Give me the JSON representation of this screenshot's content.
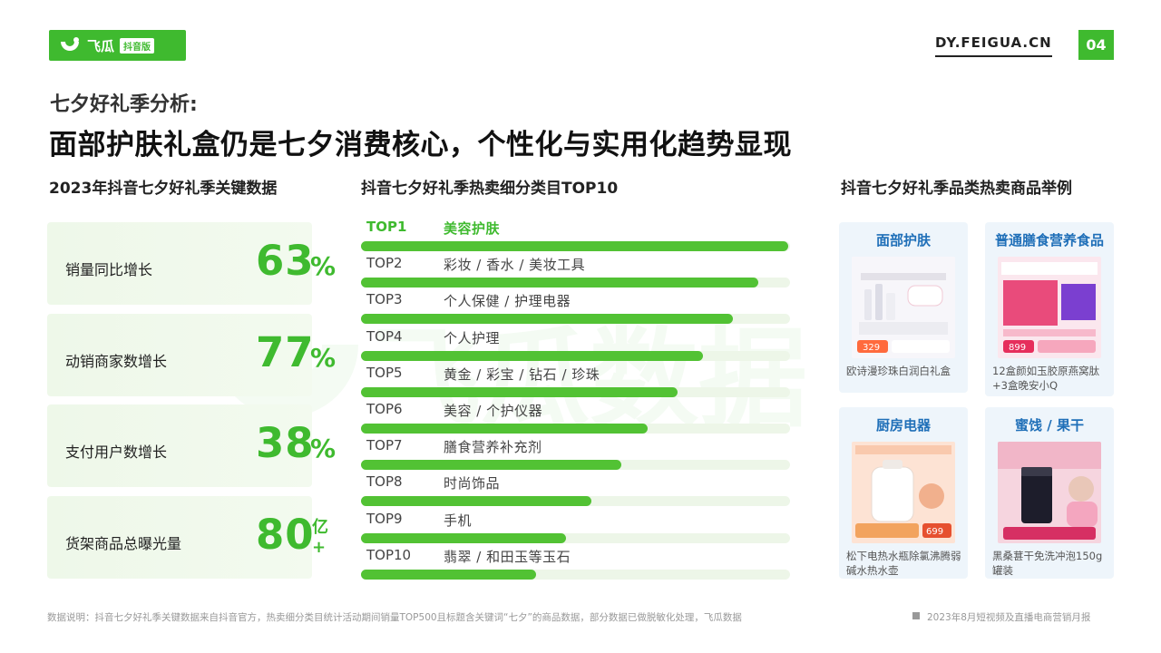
{
  "header": {
    "logo_text": "飞瓜",
    "logo_tag": "抖音版",
    "site": "DY.FEIGUA.CN",
    "page_number": "04"
  },
  "subtitle": "七夕好礼季分析:",
  "title": "面部护肤礼盒仍是七夕消费核心，个性化与实用化趋势显现",
  "sections": {
    "kpi_title": "2023年抖音七夕好礼季关键数据",
    "ranking_title": "抖音七夕好礼季热卖细分类目TOP10",
    "products_title": "抖音七夕好礼季品类热卖商品举例"
  },
  "kpis": [
    {
      "label": "销量同比增长",
      "value": "63",
      "unit": "%"
    },
    {
      "label": "动销商家数增长",
      "value": "77",
      "unit": "%"
    },
    {
      "label": "支付用户数增长",
      "value": "38",
      "unit": "%"
    },
    {
      "label": "货架商品总曝光量",
      "value": "80",
      "unit": "亿+"
    }
  ],
  "chart_data": {
    "type": "bar",
    "title": "抖音七夕好礼季热卖细分类目TOP10",
    "categories": [
      "美容护肤",
      "彩妆 / 香水 / 美妆工具",
      "个人保健 / 护理电器",
      "个人护理",
      "黄金 / 彩宝 / 钻石 / 珍珠",
      "美容 / 个护仪器",
      "膳食营养补充剂",
      "时尚饰品",
      "手机",
      "翡翠 / 和田玉等玉石"
    ],
    "rank_labels": [
      "TOP1",
      "TOP2",
      "TOP3",
      "TOP4",
      "TOP5",
      "TOP6",
      "TOP7",
      "TOP8",
      "TOP9",
      "TOP10"
    ],
    "values": [
      100,
      93,
      87,
      80,
      74,
      67,
      61,
      54,
      48,
      41
    ],
    "max": 100
  },
  "products": [
    {
      "category": "面部护肤",
      "caption": "欧诗漫珍珠白润白礼盒",
      "price": "329"
    },
    {
      "category": "普通膳食营养食品",
      "caption": "12盒颜如玉胶原燕窝肽+3盒晚安小Q",
      "price": "899"
    },
    {
      "category": "厨房电器",
      "caption": "松下电热水瓶除氯沸腾弱碱水热水壶",
      "price": "699"
    },
    {
      "category": "蜜饯 / 果干",
      "caption": "黑桑葚干免洗冲泡150g罐装",
      "price": ""
    }
  ],
  "watermark": "飞瓜数据",
  "footer": {
    "note": "数据说明：抖音七夕好礼季关键数据来自抖音官方，热卖细分类目统计活动期间销量TOP500且标题含关键词“七夕”的商品数据，部分数据已做脱敏化处理，飞瓜数据",
    "source": "2023年8月短视频及直播电商营销月报"
  },
  "colors": {
    "accent": "#3fba2f",
    "bar": "#52c234",
    "track": "#edf6e8",
    "card_title": "#1f6fb8"
  }
}
